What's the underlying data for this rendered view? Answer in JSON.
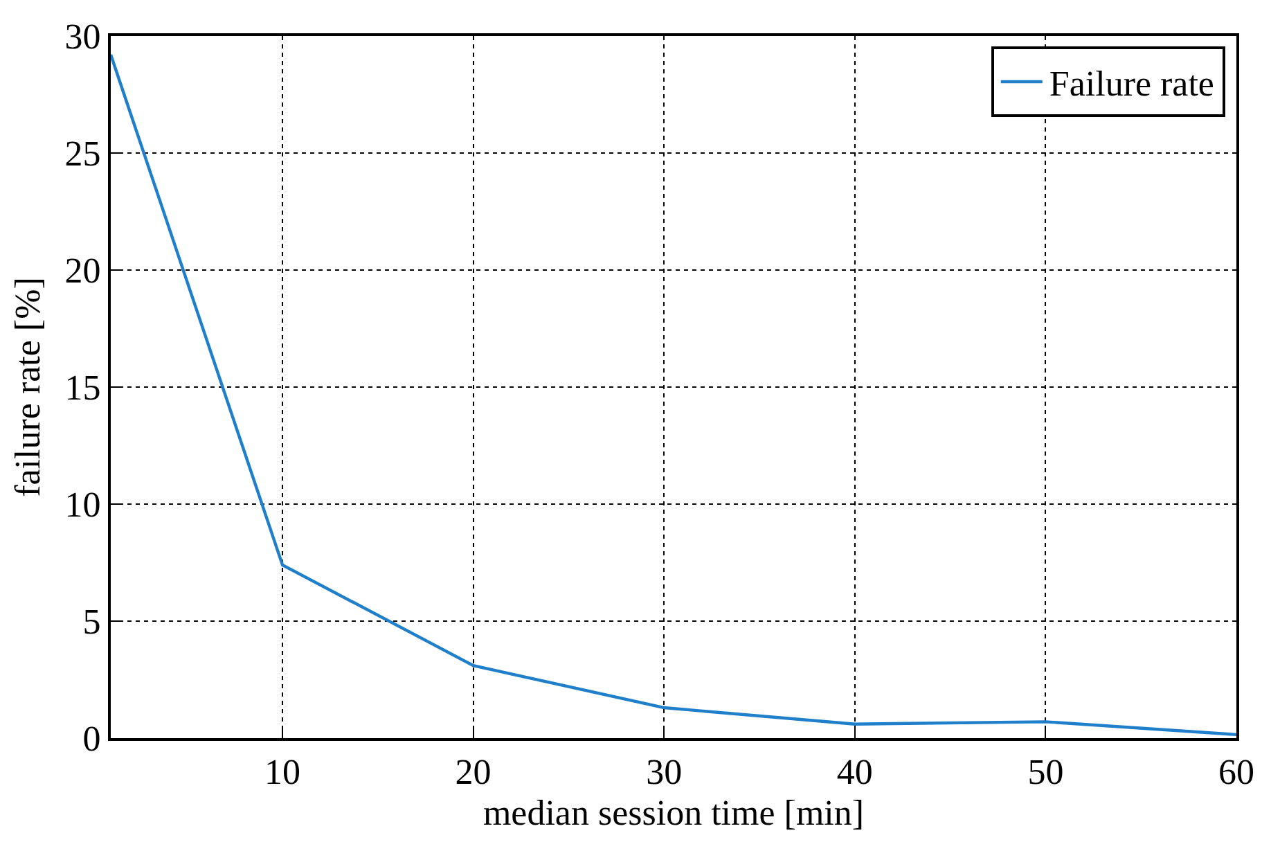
{
  "chart_data": {
    "type": "line",
    "xlabel": "median session time [min]",
    "ylabel": "failure rate [%]",
    "x": [
      1,
      10,
      20,
      30,
      40,
      50,
      60
    ],
    "series": [
      {
        "name": "Failure rate",
        "color": "#1f7fca",
        "values": [
          29.2,
          7.4,
          3.1,
          1.3,
          0.6,
          0.7,
          0.15
        ]
      }
    ],
    "xlim": [
      1,
      60
    ],
    "xticks": [
      10,
      20,
      30,
      40,
      50,
      60
    ],
    "ylim": [
      0,
      30
    ],
    "yticks": [
      0,
      5,
      10,
      15,
      20,
      25,
      30
    ],
    "grid": true,
    "legend": "top right",
    "marker": "none",
    "line_style": "solid"
  }
}
